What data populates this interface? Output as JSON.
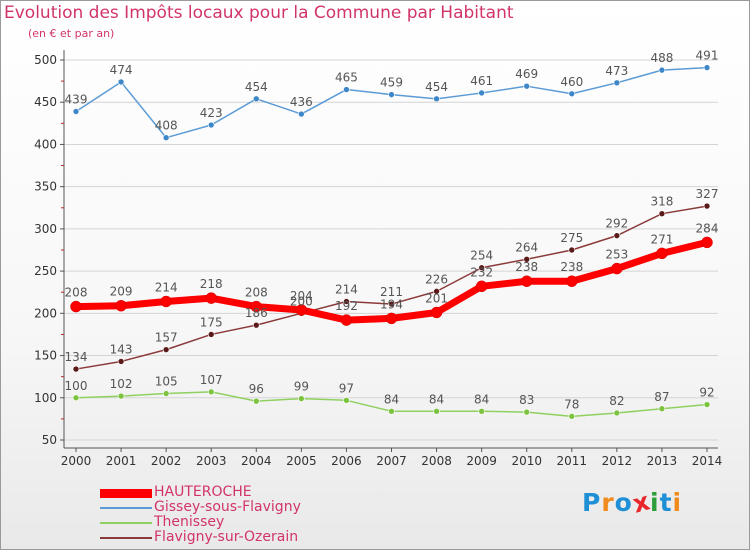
{
  "title": "Evolution des Impôts locaux pour la Commune par Habitant",
  "subtitle": "(en € et par an)",
  "logo_text": "Proxiti",
  "colors": {
    "text_accent": "#d2346a",
    "axis": "#555555",
    "logo": [
      "#1f8fd6",
      "#f08a1c",
      "#1f8fd6",
      "#e8262c",
      "#2e9e3a",
      "#1f8fd6",
      "#f08a1c"
    ]
  },
  "chart_data": {
    "type": "line",
    "title": "Evolution des Impôts locaux pour la Commune par Habitant",
    "subtitle": "(en € et par an)",
    "xlabel": "",
    "ylabel": "",
    "x": [
      "2000",
      "2001",
      "2002",
      "2003",
      "2004",
      "2005",
      "2006",
      "2007",
      "2008",
      "2009",
      "2010",
      "2011",
      "2012",
      "2013",
      "2014"
    ],
    "ylim": [
      50,
      500
    ],
    "yticks": [
      "50",
      "100",
      "150",
      "200",
      "250",
      "300",
      "350",
      "400",
      "450",
      "500"
    ],
    "grid": true,
    "legend_position": "bottom-left",
    "series": [
      {
        "name": "HAUTEROCHE",
        "color": "#ff0000",
        "marker_color": "#ff0000",
        "label_color": "#555555",
        "width": 7,
        "marker_size": 5.5,
        "values": [
          208,
          209,
          214,
          218,
          208,
          204,
          192,
          194,
          201,
          232,
          238,
          238,
          253,
          271,
          284
        ]
      },
      {
        "name": "Gissey-sous-Flavigny",
        "color": "#5b9bd5",
        "marker_color": "#3d87c8",
        "label_color": "#555555",
        "width": 1.5,
        "marker_size": 3,
        "values": [
          439,
          474,
          408,
          423,
          454,
          436,
          465,
          459,
          454,
          461,
          469,
          460,
          473,
          488,
          491
        ]
      },
      {
        "name": "Thenissey",
        "color": "#90d060",
        "marker_color": "#7cc33f",
        "label_color": "#555555",
        "width": 1.5,
        "marker_size": 3,
        "values": [
          100,
          102,
          105,
          107,
          96,
          99,
          97,
          84,
          84,
          84,
          83,
          78,
          82,
          87,
          92
        ]
      },
      {
        "name": "Flavigny-sur-Ozerain",
        "color": "#8b3a3a",
        "marker_color": "#5a1a1a",
        "label_color": "#555555",
        "width": 1.5,
        "marker_size": 3,
        "values": [
          134,
          143,
          157,
          175,
          186,
          200,
          214,
          211,
          226,
          254,
          264,
          275,
          292,
          318,
          327
        ]
      }
    ]
  }
}
